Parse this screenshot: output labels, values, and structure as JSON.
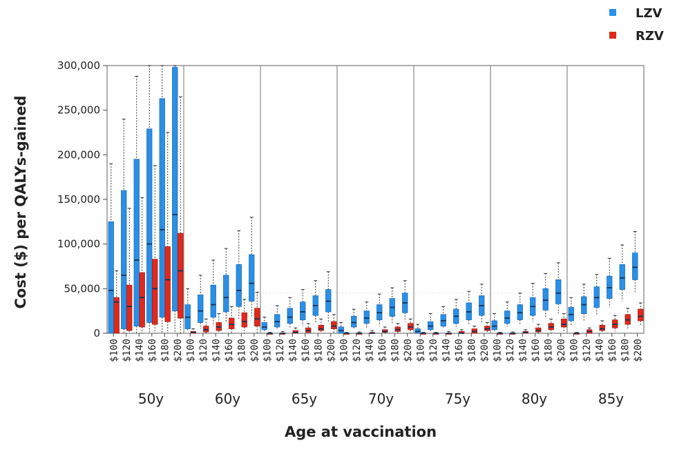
{
  "chart_data": {
    "type": "box",
    "ylabel": "Cost ($) per QALYs-gained",
    "xlabel": "Age at vaccination",
    "ylim": [
      0,
      300000
    ],
    "yticks": [
      0,
      50000,
      100000,
      150000,
      200000,
      250000,
      300000
    ],
    "ytick_labels": [
      "0",
      "50,000",
      "100,000",
      "150,000",
      "200,000",
      "250,000",
      "300,000"
    ],
    "groups": [
      "50y",
      "60y",
      "65y",
      "70y",
      "75y",
      "80y",
      "85y"
    ],
    "prices": [
      "$100",
      "$120",
      "$140",
      "$160",
      "$180",
      "$200"
    ],
    "legend": {
      "position": "top-right"
    },
    "series": [
      {
        "name": "LZV",
        "color": "#2b8fe6",
        "boxes": [
          [
            [
              0,
              0,
              48000,
              125000,
              190000
            ],
            [
              0,
              5000,
              65000,
              160000,
              240000
            ],
            [
              0,
              8000,
              82000,
              195000,
              288000
            ],
            [
              0,
              12000,
              100000,
              229000,
              300000
            ],
            [
              0,
              18000,
              116000,
              263000,
              300000
            ],
            [
              0,
              25000,
              133000,
              298000,
              300000
            ]
          ],
          [
            [
              2000,
              5000,
              18000,
              32000,
              50000
            ],
            [
              5000,
              12000,
              25000,
              43000,
              65000
            ],
            [
              8000,
              18000,
              32000,
              54000,
              82000
            ],
            [
              12000,
              24000,
              40000,
              65000,
              95000
            ],
            [
              15000,
              30000,
              48000,
              77000,
              115000
            ],
            [
              18000,
              36000,
              56000,
              88000,
              130000
            ]
          ],
          [
            [
              2000,
              4000,
              7000,
              12000,
              18000
            ],
            [
              4000,
              7000,
              13000,
              21000,
              31000
            ],
            [
              6000,
              11000,
              18000,
              28000,
              40000
            ],
            [
              8000,
              15000,
              24000,
              35000,
              49000
            ],
            [
              11000,
              20000,
              31000,
              42000,
              59000
            ],
            [
              13000,
              24000,
              36000,
              49000,
              69000
            ]
          ],
          [
            [
              0,
              0,
              3000,
              7000,
              12000
            ],
            [
              4000,
              7000,
              12000,
              19000,
              27000
            ],
            [
              6000,
              11000,
              17000,
              25000,
              35000
            ],
            [
              8000,
              15000,
              23000,
              32000,
              44000
            ],
            [
              11000,
              19000,
              29000,
              39000,
              51000
            ],
            [
              13000,
              23000,
              34000,
              45000,
              59000
            ]
          ],
          [
            [
              0,
              0,
              2000,
              5000,
              10000
            ],
            [
              2000,
              4000,
              8000,
              13000,
              22000
            ],
            [
              5000,
              8000,
              14000,
              21000,
              30000
            ],
            [
              7000,
              11000,
              19000,
              27000,
              38000
            ],
            [
              9000,
              15000,
              24000,
              34000,
              47000
            ],
            [
              12000,
              20000,
              31000,
              42000,
              55000
            ]
          ],
          [
            [
              1000,
              4000,
              8000,
              14000,
              22000
            ],
            [
              7000,
              11000,
              17000,
              25000,
              35000
            ],
            [
              9000,
              15000,
              23000,
              32000,
              45000
            ],
            [
              13000,
              20000,
              30000,
              40000,
              56000
            ],
            [
              17000,
              26000,
              37000,
              50000,
              67000
            ],
            [
              22000,
              33000,
              45000,
              60000,
              79000
            ]
          ],
          [
            [
              8000,
              14000,
              21000,
              29000,
              40000
            ],
            [
              14000,
              22000,
              32000,
              41000,
              55000
            ],
            [
              21000,
              29000,
              40000,
              52000,
              66000
            ],
            [
              29000,
              39000,
              51000,
              64000,
              84000
            ],
            [
              36000,
              49000,
              62000,
              77000,
              99000
            ],
            [
              45000,
              60000,
              74000,
              90000,
              114000
            ]
          ]
        ]
      },
      {
        "name": "RZV",
        "color": "#e0291d",
        "boxes": [
          [
            [
              0,
              0,
              35000,
              40000,
              70000
            ],
            [
              0,
              3000,
              30000,
              54000,
              140000
            ],
            [
              0,
              7000,
              40000,
              68000,
              152000
            ],
            [
              0,
              10000,
              50000,
              83000,
              188000
            ],
            [
              0,
              13000,
              60000,
              97000,
              225000
            ],
            [
              0,
              17000,
              70000,
              112000,
              265000
            ]
          ],
          [
            [
              0,
              0,
              1000,
              2000,
              5000
            ],
            [
              0,
              1500,
              4000,
              8000,
              16000
            ],
            [
              0,
              3000,
              7000,
              12000,
              22000
            ],
            [
              0,
              5000,
              10000,
              17000,
              30000
            ],
            [
              0,
              7000,
              13000,
              23000,
              38000
            ],
            [
              0,
              8000,
              16000,
              28000,
              46000
            ]
          ],
          [
            [
              0,
              0,
              0,
              0,
              1000
            ],
            [
              0,
              0,
              0,
              0,
              2000
            ],
            [
              0,
              0,
              1000,
              3000,
              6000
            ],
            [
              0,
              1000,
              3000,
              6000,
              11000
            ],
            [
              0,
              3000,
              5000,
              9000,
              16000
            ],
            [
              0,
              5000,
              8000,
              13000,
              21000
            ]
          ],
          [
            [
              0,
              0,
              0,
              0,
              1000
            ],
            [
              0,
              0,
              0,
              0,
              1500
            ],
            [
              0,
              0,
              0,
              1000,
              3000
            ],
            [
              0,
              1000,
              2000,
              4000,
              7000
            ],
            [
              0,
              2000,
              4000,
              7000,
              11000
            ],
            [
              0,
              4000,
              7000,
              11000,
              16000
            ]
          ],
          [
            [
              0,
              0,
              0,
              0,
              1000
            ],
            [
              0,
              0,
              0,
              0,
              1000
            ],
            [
              0,
              0,
              0,
              0,
              2000
            ],
            [
              0,
              0,
              0,
              2000,
              4000
            ],
            [
              0,
              0,
              2000,
              5000,
              8000
            ],
            [
              0,
              3000,
              5000,
              8000,
              12000
            ]
          ],
          [
            [
              0,
              0,
              0,
              0,
              1000
            ],
            [
              0,
              0,
              0,
              0,
              1500
            ],
            [
              0,
              0,
              1000,
              2000,
              4000
            ],
            [
              0,
              1500,
              3000,
              6000,
              10000
            ],
            [
              0,
              4000,
              7000,
              11000,
              16000
            ],
            [
              2000,
              7000,
              10000,
              16000,
              22000
            ]
          ],
          [
            [
              0,
              0,
              0,
              0,
              1000
            ],
            [
              0,
              0,
              2000,
              4000,
              6000
            ],
            [
              0,
              3000,
              5000,
              9000,
              14000
            ],
            [
              2000,
              6000,
              10000,
              15000,
              20000
            ],
            [
              5000,
              10000,
              15000,
              21000,
              28000
            ],
            [
              8000,
              14000,
              19000,
              27000,
              34000
            ]
          ]
        ]
      }
    ]
  }
}
